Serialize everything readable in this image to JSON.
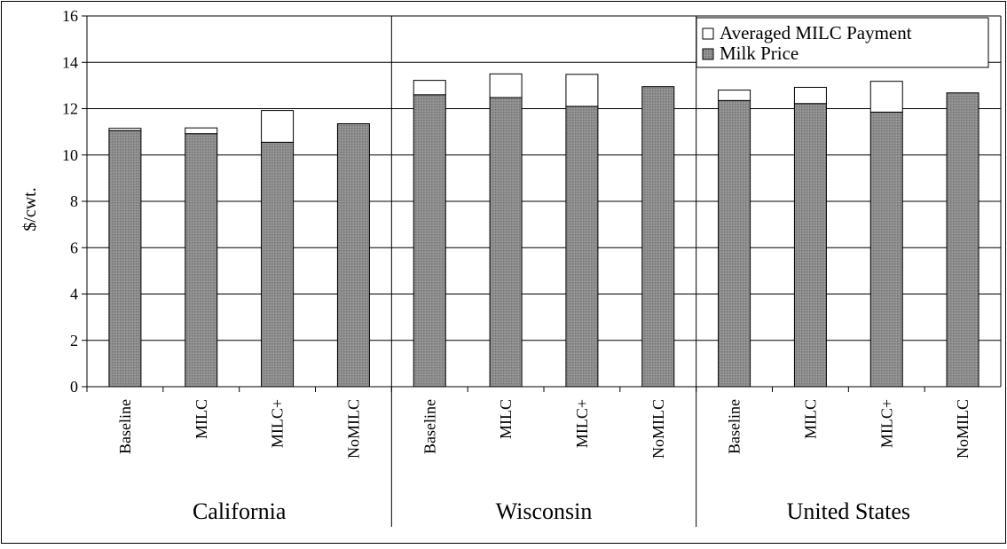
{
  "chart_data": {
    "type": "bar",
    "stacked": true,
    "ylabel": "$/cwt.",
    "ylim": [
      0,
      16
    ],
    "yticks": [
      "0",
      "2",
      "4",
      "6",
      "8",
      "10",
      "12",
      "14",
      "16"
    ],
    "grid": true,
    "legend_position": "top-right",
    "groups": [
      "California",
      "Wisconsin",
      "United States"
    ],
    "categories": [
      "Baseline",
      "MILC",
      "MILC+",
      "NoMILC",
      "Baseline",
      "MILC",
      "MILC+",
      "NoMILC",
      "Baseline",
      "MILC",
      "MILC+",
      "NoMILC"
    ],
    "series": [
      {
        "name": "Milk Price",
        "color": "#8c8c8c",
        "values": [
          11.05,
          10.92,
          10.55,
          11.35,
          12.6,
          12.48,
          12.1,
          12.95,
          12.35,
          12.22,
          11.85,
          12.68
        ]
      },
      {
        "name": "Averaged MILC Payment",
        "color": "#ffffff",
        "values": [
          0.1,
          0.25,
          1.37,
          0.0,
          0.62,
          1.02,
          1.38,
          0.0,
          0.45,
          0.7,
          1.33,
          0.0
        ]
      }
    ],
    "legend_order": [
      "Averaged MILC Payment",
      "Milk Price"
    ]
  }
}
